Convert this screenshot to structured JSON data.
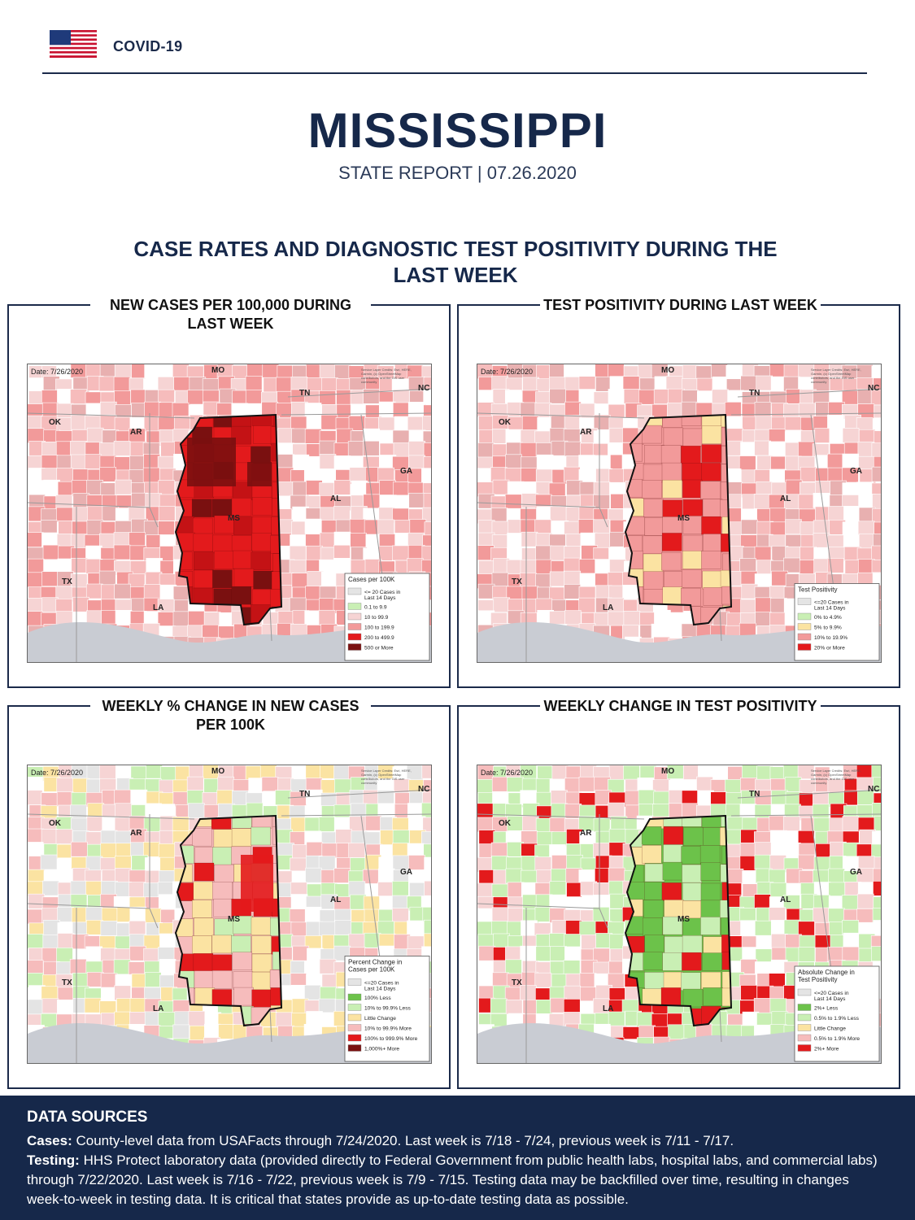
{
  "header": {
    "brand": "COVID-19"
  },
  "title": "MISSISSIPPI",
  "subtitle": "STATE REPORT | 07.26.2020",
  "section_title": "CASE RATES AND DIAGNOSTIC TEST POSITIVITY DURING THE LAST WEEK",
  "colors": {
    "navy": "#16284a",
    "none": "#e4e4e4",
    "green_strong": "#6cc24a",
    "green_light": "#c9efb4",
    "yellow": "#fbe3a2",
    "pink_light": "#f6bcbc",
    "pink": "#f29a9a",
    "red": "#e31a1c",
    "dark_red": "#7a1010"
  },
  "panels": [
    {
      "title": "NEW CASES PER 100,000 DURING LAST WEEK",
      "date": "Date: 7/26/2020",
      "credits": "Service Layer Credits: Esri, HERE, Garmin, (c) OpenStreetMap contributors, and the GIS user community",
      "state_labels": [
        "MO",
        "TN",
        "NC",
        "OK",
        "AR",
        "GA",
        "AL",
        "MS",
        "TX",
        "LA"
      ],
      "legend_title": "Cases per 100K",
      "legend": [
        {
          "label": "<= 20 Cases in Last 14 Days",
          "color": "#e4e4e4"
        },
        {
          "label": "0.1 to 9.9",
          "color": "#c9efb4"
        },
        {
          "label": "10 to 99.9",
          "color": "#f6d4d4"
        },
        {
          "label": "100 to 199.9",
          "color": "#f29a9a"
        },
        {
          "label": "200 to 499.9",
          "color": "#e31a1c"
        },
        {
          "label": "500 or More",
          "color": "#7a1010"
        }
      ],
      "ms_base": "#e31a1c"
    },
    {
      "title": "TEST POSITIVITY DURING LAST WEEK",
      "date": "Date: 7/26/2020",
      "credits": "Service Layer Credits: Esri, HERE, Garmin, (c) OpenStreetMap contributors, and the GIS user community",
      "state_labels": [
        "MO",
        "TN",
        "NC",
        "OK",
        "AR",
        "GA",
        "AL",
        "MS",
        "TX",
        "LA"
      ],
      "legend_title": "Test Positivity",
      "legend": [
        {
          "label": "<=20 Cases in Last 14 Days",
          "color": "#e4e4e4"
        },
        {
          "label": "0% to 4.9%",
          "color": "#c9efb4"
        },
        {
          "label": "5% to 9.9%",
          "color": "#fbe3a2"
        },
        {
          "label": "10% to 19.9%",
          "color": "#f29a9a"
        },
        {
          "label": "20% or More",
          "color": "#e31a1c"
        }
      ],
      "ms_base": "#f29a9a"
    },
    {
      "title": "WEEKLY % CHANGE IN NEW CASES PER 100K",
      "date": "Date: 7/26/2020",
      "credits": "Service Layer Credits: Esri, HERE, Garmin, (c) OpenStreetMap contributors, and the GIS user community",
      "state_labels": [
        "MO",
        "TN",
        "NC",
        "OK",
        "AR",
        "GA",
        "AL",
        "MS",
        "TX",
        "LA"
      ],
      "legend_title": "Percent Change in Cases per 100K",
      "legend": [
        {
          "label": "<=20 Cases in Last 14 Days",
          "color": "#e4e4e4"
        },
        {
          "label": "100% Less",
          "color": "#6cc24a"
        },
        {
          "label": "10% to 99.9% Less",
          "color": "#c9efb4"
        },
        {
          "label": "Little Change",
          "color": "#fbe3a2"
        },
        {
          "label": "10% to 99.9% More",
          "color": "#f6bcbc"
        },
        {
          "label": "100% to 999.9% More",
          "color": "#e31a1c"
        },
        {
          "label": "1,000%+ More",
          "color": "#7a1010"
        }
      ],
      "ms_base": "#f6bcbc"
    },
    {
      "title": "WEEKLY CHANGE IN TEST POSITIVITY",
      "date": "Date: 7/26/2020",
      "credits": "Service Layer Credits: Esri, HERE, Garmin, (c) OpenStreetMap contributors, and the GIS user community",
      "state_labels": [
        "MO",
        "TN",
        "NC",
        "OK",
        "AR",
        "GA",
        "AL",
        "MS",
        "TX",
        "LA"
      ],
      "legend_title": "Absolute Change in Test Positivity",
      "legend": [
        {
          "label": "<=20 Cases in Last 14 Days",
          "color": "#e4e4e4"
        },
        {
          "label": "2%+ Less",
          "color": "#6cc24a"
        },
        {
          "label": "0.5% to 1.9% Less",
          "color": "#c9efb4"
        },
        {
          "label": "Little Change",
          "color": "#fbe3a2"
        },
        {
          "label": "0.5% to 1.9% More",
          "color": "#f6bcbc"
        },
        {
          "label": "2%+ More",
          "color": "#e31a1c"
        }
      ],
      "ms_base": "#6cc24a"
    }
  ],
  "footer": {
    "title": "DATA SOURCES",
    "cases_label": "Cases:",
    "cases_text": "County-level data from USAFacts through 7/24/2020. Last week is 7/18 - 7/24, previous week is 7/11 - 7/17.",
    "testing_label": "Testing:",
    "testing_text": "HHS Protect laboratory data (provided directly to Federal Government from public health labs, hospital labs, and commercial labs) through 7/22/2020. Last week is 7/16 - 7/22, previous week is 7/9 - 7/15. Testing data may be backfilled over time, resulting in changes week-to-week in testing data. It is critical that states provide as up-to-date testing data as possible."
  }
}
